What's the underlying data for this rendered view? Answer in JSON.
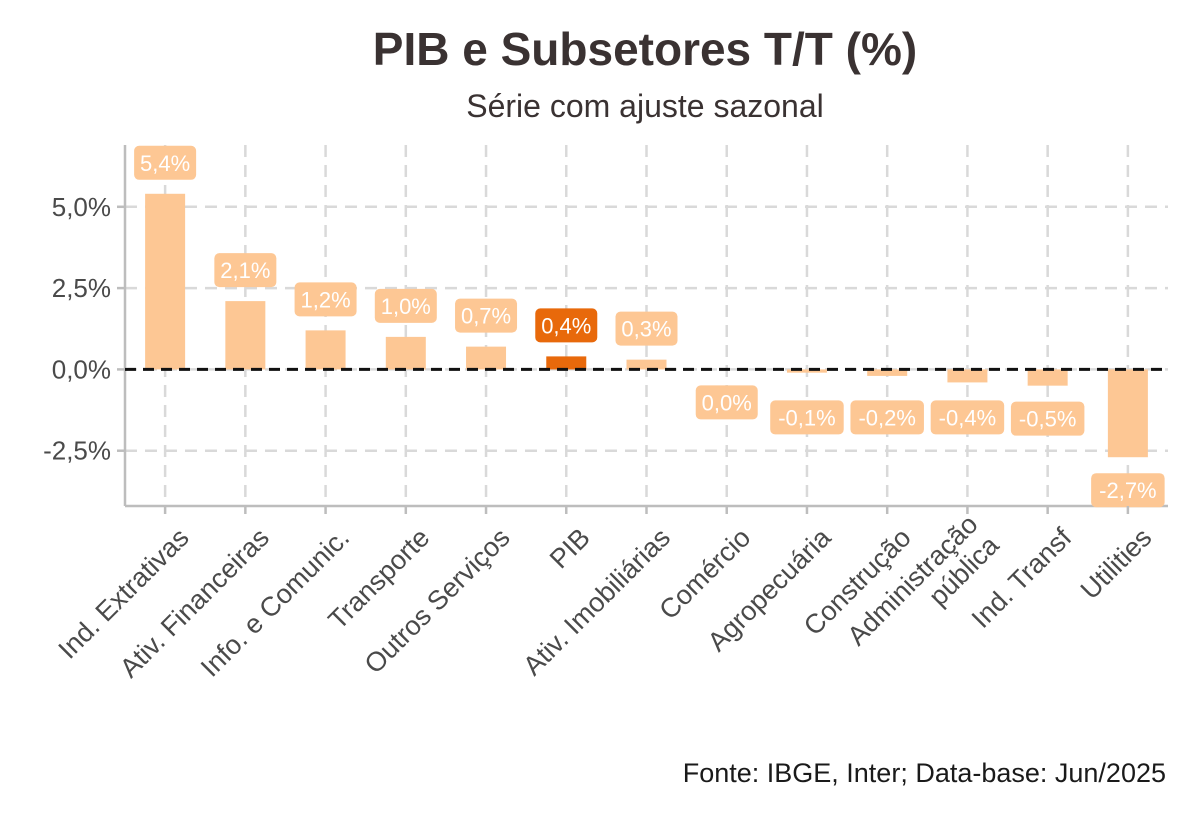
{
  "title": "PIB e Subsetores T/T (%)",
  "subtitle": "Série com ajuste sazonal",
  "source": "Fonte: IBGE, Inter; Data-base: Jun/2025",
  "colors": {
    "bar": "#fdc794",
    "highlight": "#e8690b",
    "grid": "#d9d9d9",
    "axis": "#bdbdbd",
    "zero_line": "#111111"
  },
  "chart_data": {
    "type": "bar",
    "title": "PIB e Subsetores T/T (%)",
    "subtitle": "Série com ajuste sazonal",
    "xlabel": "",
    "ylabel": "",
    "ylim": [
      -4.2,
      6.9
    ],
    "yticks": [
      5.0,
      2.5,
      0.0,
      -2.5
    ],
    "ytick_labels": [
      "5,0%",
      "2,5%",
      "0,0%",
      "-2,5%"
    ],
    "categories": [
      "Ind. Extrativas",
      "Ativ. Financeiras",
      "Info. e Comunic.",
      "Transporte",
      "Outros Serviços",
      "PIB",
      "Ativ. Imobiliárias",
      "Comércio",
      "Agropecuária",
      "Construção",
      "Administração\npública",
      "Ind. Transf",
      "Utilities"
    ],
    "values": [
      5.4,
      2.1,
      1.2,
      1.0,
      0.7,
      0.4,
      0.3,
      0.0,
      -0.1,
      -0.2,
      -0.4,
      -0.5,
      -2.7
    ],
    "labels": [
      "5,4%",
      "2,1%",
      "1,2%",
      "1,0%",
      "0,7%",
      "0,4%",
      "0,3%",
      "0,0%",
      "-0,1%",
      "-0,2%",
      "-0,4%",
      "-0,5%",
      "-2,7%"
    ],
    "highlight": "PIB",
    "grid": true,
    "reference_line": 0.0
  }
}
